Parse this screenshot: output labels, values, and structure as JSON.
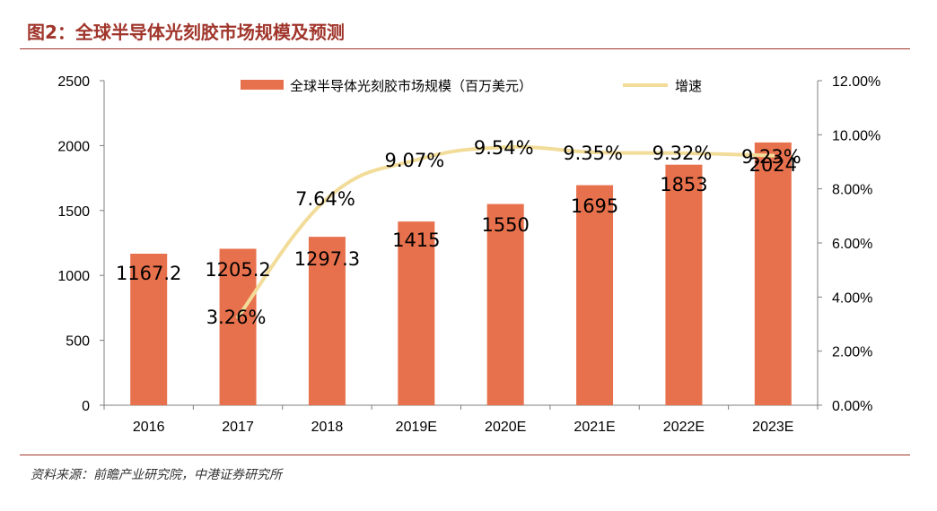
{
  "figure": {
    "title": "图2：全球半导体光刻胶市场规模及预测",
    "source": "资料来源：前瞻产业研究院，中港证券研究所"
  },
  "colors": {
    "bar": "#e8714d",
    "line": "#f2dc99",
    "accent": "#a0352b"
  },
  "chart_data": {
    "type": "bar",
    "categories": [
      "2016",
      "2017",
      "2018",
      "2019E",
      "2020E",
      "2021E",
      "2022E",
      "2023E"
    ],
    "series": [
      {
        "name": "全球半导体光刻胶市场规模（百万美元）",
        "type": "bar",
        "axis": "left",
        "values": [
          1167.2,
          1205.2,
          1297.3,
          1415,
          1550,
          1695,
          1853,
          2024
        ],
        "labels": [
          "1167.2",
          "1205.2",
          "1297.3",
          "1415",
          "1550",
          "1695",
          "1853",
          "2024"
        ]
      },
      {
        "name": "增速",
        "type": "line",
        "axis": "right",
        "values": [
          null,
          3.26,
          7.64,
          9.07,
          9.54,
          9.35,
          9.32,
          9.23
        ],
        "labels": [
          "",
          "3.26%",
          "7.64%",
          "9.07%",
          "9.54%",
          "9.35%",
          "9.32%",
          "9.23%"
        ]
      }
    ],
    "y_left": {
      "range": [
        0,
        2500
      ],
      "ticks": [
        "0",
        "500",
        "1000",
        "1500",
        "2000",
        "2500"
      ]
    },
    "y_right": {
      "range": [
        0,
        12
      ],
      "ticks": [
        "0.00%",
        "2.00%",
        "4.00%",
        "6.00%",
        "8.00%",
        "10.00%",
        "12.00%"
      ]
    },
    "legend": "top-center",
    "grid": false
  }
}
